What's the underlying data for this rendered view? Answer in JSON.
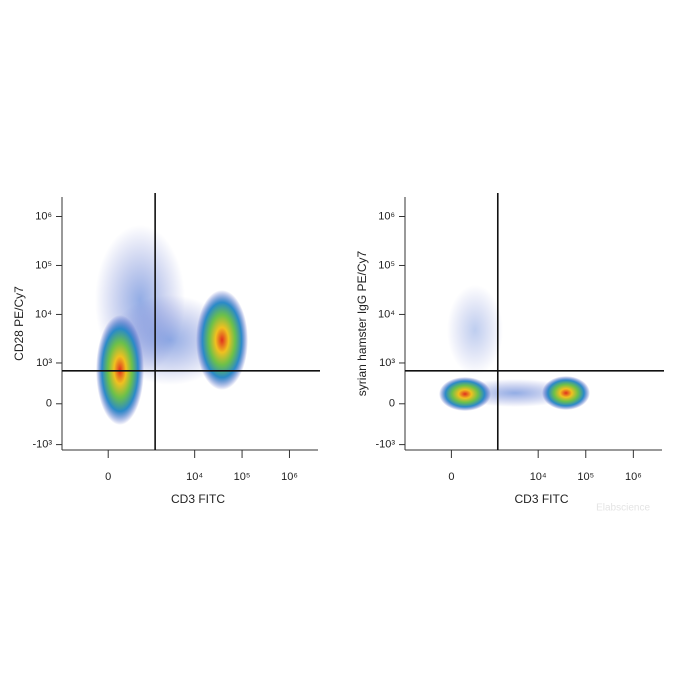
{
  "chart_data": [
    {
      "type": "scatter",
      "xlabel": "CD3 FITC",
      "ylabel": "CD28 PE/Cy7",
      "xlim": [
        -1400,
        4000000
      ],
      "ylim": [
        -1300,
        2500000
      ],
      "xticks": [
        {
          "value": 0,
          "label": "0"
        },
        {
          "value": 10000,
          "label": "10⁴"
        },
        {
          "value": 100000,
          "label": "10⁵"
        },
        {
          "value": 1000000,
          "label": "10⁶"
        }
      ],
      "yticks": [
        {
          "value": -1000,
          "label": "-10³"
        },
        {
          "value": 0,
          "label": "0"
        },
        {
          "value": 1000,
          "label": "10³"
        },
        {
          "value": 10000,
          "label": "10⁴"
        },
        {
          "value": 100000,
          "label": "10⁵"
        },
        {
          "value": 1000000,
          "label": "10⁶"
        }
      ],
      "gate_x": 1450,
      "gate_y": 675
    },
    {
      "type": "scatter",
      "xlabel": "CD3 FITC",
      "ylabel": "syrian hamster IgG PE/Cy7",
      "xlim": [
        -1400,
        4000000
      ],
      "ylim": [
        -1300,
        2500000
      ],
      "xticks": [
        {
          "value": 0,
          "label": "0"
        },
        {
          "value": 10000,
          "label": "10⁴"
        },
        {
          "value": 100000,
          "label": "10⁵"
        },
        {
          "value": 1000000,
          "label": "10⁶"
        }
      ],
      "yticks": [
        {
          "value": -1000,
          "label": "-10³"
        },
        {
          "value": 0,
          "label": "0"
        },
        {
          "value": 1000,
          "label": "10³"
        },
        {
          "value": 10000,
          "label": "10⁴"
        },
        {
          "value": 100000,
          "label": "10⁵"
        },
        {
          "value": 1000000,
          "label": "10⁶"
        }
      ],
      "gate_x": 1400,
      "gate_y": 675
    }
  ],
  "watermark": "Elabscience"
}
